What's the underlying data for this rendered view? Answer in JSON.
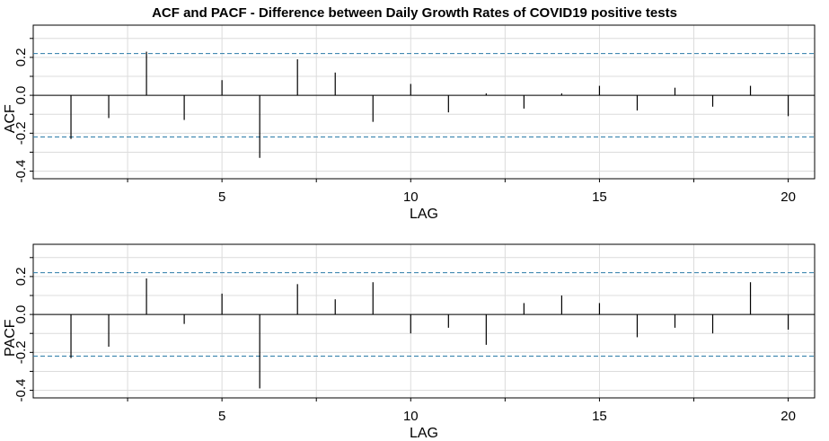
{
  "title": "ACF and PACF - Difference between Daily Growth Rates of COVID19 positive tests",
  "chart_data": [
    {
      "type": "bar",
      "ylabel": "ACF",
      "xlabel": "LAG",
      "lags": [
        1,
        2,
        3,
        4,
        5,
        6,
        7,
        8,
        9,
        10,
        11,
        12,
        13,
        14,
        15,
        16,
        17,
        18,
        19,
        20
      ],
      "values": [
        -0.23,
        -0.12,
        0.23,
        -0.13,
        0.08,
        -0.33,
        0.19,
        0.12,
        -0.14,
        0.06,
        -0.09,
        0.01,
        -0.07,
        0.01,
        0.05,
        -0.08,
        0.04,
        -0.06,
        0.05,
        -0.11
      ],
      "conf_limit": 0.22,
      "ylim": [
        -0.44,
        0.37
      ],
      "xlim": [
        0,
        20.7
      ],
      "yticks": [
        -0.4,
        -0.2,
        0.0,
        0.2
      ],
      "ytick_labels": [
        "-0.4",
        "-0.2",
        "0.0",
        "0.2"
      ],
      "xticks": [
        5,
        10,
        15,
        20
      ],
      "xtick_labels": [
        "5",
        "10",
        "15",
        "20"
      ],
      "grid": true
    },
    {
      "type": "bar",
      "ylabel": "PACF",
      "xlabel": "LAG",
      "lags": [
        1,
        2,
        3,
        4,
        5,
        6,
        7,
        8,
        9,
        10,
        11,
        12,
        13,
        14,
        15,
        16,
        17,
        18,
        19,
        20
      ],
      "values": [
        -0.23,
        -0.17,
        0.19,
        -0.05,
        0.11,
        -0.39,
        0.16,
        0.08,
        0.17,
        -0.1,
        -0.07,
        -0.16,
        0.06,
        0.1,
        0.06,
        -0.12,
        -0.07,
        -0.1,
        0.17,
        -0.08
      ],
      "conf_limit": 0.22,
      "ylim": [
        -0.44,
        0.37
      ],
      "xlim": [
        0,
        20.7
      ],
      "yticks": [
        -0.4,
        -0.2,
        0.0,
        0.2
      ],
      "ytick_labels": [
        "-0.4",
        "-0.2",
        "0.0",
        "0.2"
      ],
      "xticks": [
        5,
        10,
        15,
        20
      ],
      "xtick_labels": [
        "5",
        "10",
        "15",
        "20"
      ],
      "grid": true
    }
  ],
  "colors": {
    "conf_line": "#2b7ba8",
    "grid": "#dcdcdc",
    "bar": "#000000",
    "axis": "#000000"
  }
}
